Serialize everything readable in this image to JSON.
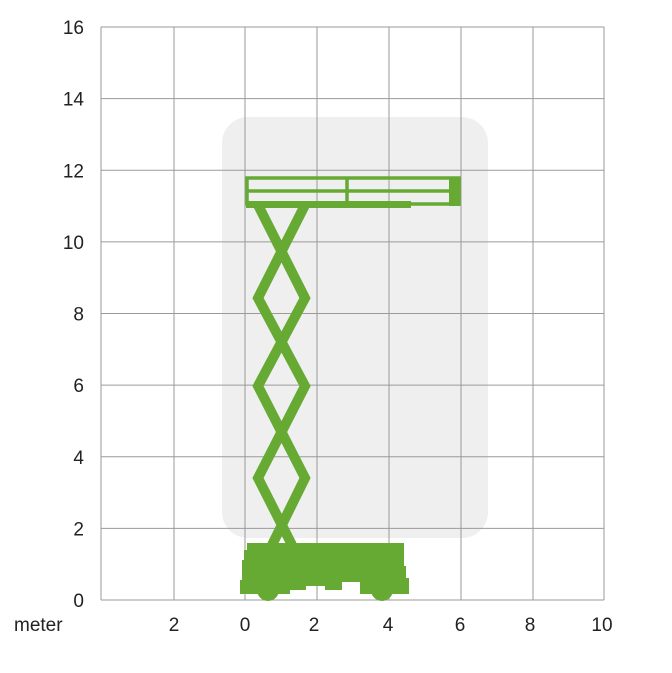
{
  "axes": {
    "x_unit_label": "meter",
    "x_ticks": [
      "2",
      "0",
      "2",
      "4",
      "6",
      "8",
      "10"
    ],
    "y_ticks": [
      "0",
      "2",
      "4",
      "6",
      "8",
      "10",
      "12",
      "14",
      "16"
    ]
  },
  "colors": {
    "lift": "#66aa33",
    "working_envelope": "#efefef",
    "grid": "#9a9a9a"
  },
  "icons": {
    "machine": "scissor-lift-icon"
  }
}
